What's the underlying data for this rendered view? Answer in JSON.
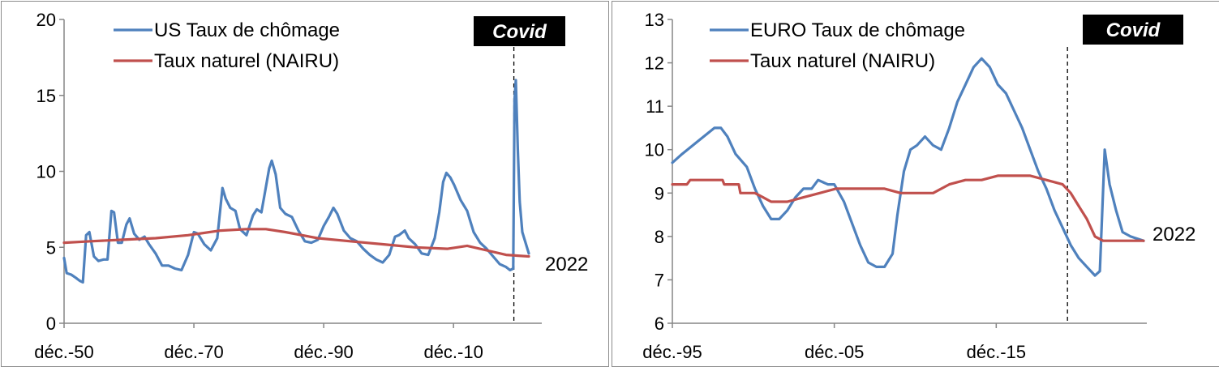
{
  "colors": {
    "unemployment": "#4f81bd",
    "nairu": "#c0504d",
    "axis": "#868686",
    "covid_bg": "#000000"
  },
  "chart_data": [
    {
      "type": "line",
      "title": "",
      "ylim": [
        0,
        20
      ],
      "yticks": [
        "0",
        "5",
        "10",
        "15",
        "20"
      ],
      "xlim": [
        1950.9,
        2024.5
      ],
      "xticks": [
        {
          "x": 1950.9,
          "label": "déc.-50"
        },
        {
          "x": 1970.9,
          "label": "déc.-70"
        },
        {
          "x": 1990.9,
          "label": "déc.-90"
        },
        {
          "x": 2010.9,
          "label": "déc.-10"
        }
      ],
      "grid": false,
      "legend": "top-left",
      "covid_label": "Covid",
      "covid_x": 2020.2,
      "end_label": "2022",
      "series": [
        {
          "name": "US Taux de chômage",
          "color": "#4f81bd",
          "points": [
            [
              1950.9,
              4.3
            ],
            [
              1951.3,
              3.3
            ],
            [
              1952,
              3.2
            ],
            [
              1952.7,
              3.0
            ],
            [
              1953.3,
              2.8
            ],
            [
              1953.8,
              2.7
            ],
            [
              1954.3,
              5.8
            ],
            [
              1954.8,
              6.0
            ],
            [
              1955.5,
              4.4
            ],
            [
              1956.2,
              4.1
            ],
            [
              1957,
              4.2
            ],
            [
              1957.6,
              4.2
            ],
            [
              1958.2,
              7.4
            ],
            [
              1958.6,
              7.3
            ],
            [
              1959.2,
              5.3
            ],
            [
              1959.8,
              5.3
            ],
            [
              1960.5,
              6.5
            ],
            [
              1961,
              6.9
            ],
            [
              1961.7,
              5.9
            ],
            [
              1962.5,
              5.5
            ],
            [
              1963.3,
              5.7
            ],
            [
              1964,
              5.2
            ],
            [
              1965,
              4.6
            ],
            [
              1966,
              3.8
            ],
            [
              1967,
              3.8
            ],
            [
              1968,
              3.6
            ],
            [
              1969,
              3.5
            ],
            [
              1970,
              4.5
            ],
            [
              1970.9,
              6.0
            ],
            [
              1971.5,
              5.9
            ],
            [
              1972.5,
              5.2
            ],
            [
              1973.5,
              4.8
            ],
            [
              1974.5,
              5.6
            ],
            [
              1975.3,
              8.9
            ],
            [
              1975.8,
              8.2
            ],
            [
              1976.5,
              7.6
            ],
            [
              1977.3,
              7.4
            ],
            [
              1978,
              6.2
            ],
            [
              1979,
              5.8
            ],
            [
              1980,
              7.1
            ],
            [
              1980.6,
              7.5
            ],
            [
              1981.3,
              7.3
            ],
            [
              1981.8,
              8.5
            ],
            [
              1982.5,
              10.2
            ],
            [
              1982.9,
              10.7
            ],
            [
              1983.5,
              9.8
            ],
            [
              1984.2,
              7.6
            ],
            [
              1985,
              7.2
            ],
            [
              1986,
              7.0
            ],
            [
              1987,
              6.1
            ],
            [
              1988,
              5.4
            ],
            [
              1989,
              5.3
            ],
            [
              1990,
              5.5
            ],
            [
              1990.9,
              6.4
            ],
            [
              1991.7,
              7.0
            ],
            [
              1992.4,
              7.6
            ],
            [
              1993,
              7.2
            ],
            [
              1994,
              6.1
            ],
            [
              1995,
              5.6
            ],
            [
              1996,
              5.4
            ],
            [
              1997,
              4.9
            ],
            [
              1998,
              4.5
            ],
            [
              1999,
              4.2
            ],
            [
              2000,
              4.0
            ],
            [
              2001,
              4.5
            ],
            [
              2001.9,
              5.7
            ],
            [
              2002.5,
              5.8
            ],
            [
              2003.4,
              6.1
            ],
            [
              2004,
              5.6
            ],
            [
              2005,
              5.2
            ],
            [
              2006,
              4.6
            ],
            [
              2007,
              4.5
            ],
            [
              2008,
              5.6
            ],
            [
              2008.7,
              7.3
            ],
            [
              2009.3,
              9.3
            ],
            [
              2009.8,
              9.9
            ],
            [
              2010.4,
              9.6
            ],
            [
              2011,
              9.1
            ],
            [
              2012,
              8.1
            ],
            [
              2013,
              7.4
            ],
            [
              2014,
              6.0
            ],
            [
              2015,
              5.3
            ],
            [
              2016,
              4.9
            ],
            [
              2017,
              4.4
            ],
            [
              2018,
              3.9
            ],
            [
              2019,
              3.7
            ],
            [
              2019.6,
              3.5
            ],
            [
              2020.1,
              3.6
            ],
            [
              2020.3,
              14.7
            ],
            [
              2020.5,
              16.0
            ],
            [
              2020.8,
              11.5
            ],
            [
              2021.1,
              8.0
            ],
            [
              2021.5,
              6.0
            ],
            [
              2022,
              5.3
            ],
            [
              2022.5,
              4.6
            ]
          ]
        },
        {
          "name": "Taux naturel (NAIRU)",
          "color": "#c0504d",
          "points": [
            [
              1950.9,
              5.3
            ],
            [
              1955,
              5.4
            ],
            [
              1960,
              5.5
            ],
            [
              1965,
              5.6
            ],
            [
              1970,
              5.8
            ],
            [
              1975,
              6.1
            ],
            [
              1979,
              6.2
            ],
            [
              1982,
              6.2
            ],
            [
              1985,
              6.0
            ],
            [
              1990,
              5.6
            ],
            [
              1995,
              5.4
            ],
            [
              2000,
              5.2
            ],
            [
              2005,
              5.0
            ],
            [
              2010,
              4.9
            ],
            [
              2013,
              5.1
            ],
            [
              2016,
              4.8
            ],
            [
              2019,
              4.5
            ],
            [
              2022.5,
              4.4
            ]
          ]
        }
      ]
    },
    {
      "type": "line",
      "title": "",
      "ylim": [
        6,
        13
      ],
      "yticks": [
        "6",
        "7",
        "8",
        "9",
        "10",
        "11",
        "12",
        "13"
      ],
      "xlim": [
        1995.9,
        2025.2
      ],
      "xticks": [
        {
          "x": 1995.9,
          "label": "déc.-95"
        },
        {
          "x": 2005.9,
          "label": "déc.-05"
        },
        {
          "x": 2015.9,
          "label": "déc.-15"
        }
      ],
      "grid": false,
      "legend": "top-left",
      "covid_label": "Covid",
      "covid_x": 2020.3,
      "end_label": "2022",
      "series": [
        {
          "name": "EURO Taux de chômage",
          "color": "#4f81bd",
          "points": [
            [
              1995.9,
              9.7
            ],
            [
              1996.5,
              9.9
            ],
            [
              1997.5,
              10.2
            ],
            [
              1998.5,
              10.5
            ],
            [
              1998.9,
              10.5
            ],
            [
              1999.3,
              10.3
            ],
            [
              1999.8,
              9.9
            ],
            [
              2000.5,
              9.6
            ],
            [
              2001,
              9.1
            ],
            [
              2001.5,
              8.7
            ],
            [
              2002,
              8.4
            ],
            [
              2002.5,
              8.4
            ],
            [
              2003,
              8.6
            ],
            [
              2003.5,
              8.9
            ],
            [
              2004,
              9.1
            ],
            [
              2004.5,
              9.1
            ],
            [
              2004.9,
              9.3
            ],
            [
              2005.5,
              9.2
            ],
            [
              2005.9,
              9.2
            ],
            [
              2006.5,
              8.8
            ],
            [
              2007,
              8.3
            ],
            [
              2007.5,
              7.8
            ],
            [
              2008,
              7.4
            ],
            [
              2008.5,
              7.3
            ],
            [
              2009,
              7.3
            ],
            [
              2009.5,
              7.6
            ],
            [
              2009.8,
              8.5
            ],
            [
              2010.2,
              9.5
            ],
            [
              2010.6,
              10.0
            ],
            [
              2011,
              10.1
            ],
            [
              2011.5,
              10.3
            ],
            [
              2012,
              10.1
            ],
            [
              2012.5,
              10.0
            ],
            [
              2013,
              10.5
            ],
            [
              2013.5,
              11.1
            ],
            [
              2014,
              11.5
            ],
            [
              2014.5,
              11.9
            ],
            [
              2015,
              12.1
            ],
            [
              2015.5,
              11.9
            ],
            [
              2016,
              11.5
            ],
            [
              2016.5,
              11.3
            ],
            [
              2017,
              10.9
            ],
            [
              2017.5,
              10.5
            ],
            [
              2018,
              10.0
            ],
            [
              2018.5,
              9.5
            ],
            [
              2019,
              9.1
            ],
            [
              2019.5,
              8.6
            ],
            [
              2020,
              8.2
            ],
            [
              2020.5,
              7.8
            ],
            [
              2021,
              7.5
            ],
            [
              2021.5,
              7.3
            ],
            [
              2022,
              7.1
            ],
            [
              2022.3,
              7.2
            ],
            [
              2022.6,
              10.0
            ],
            [
              2022.9,
              9.2
            ],
            [
              2023.3,
              8.6
            ],
            [
              2023.7,
              8.1
            ],
            [
              2024.2,
              8.0
            ],
            [
              2025,
              7.9
            ]
          ]
        },
        {
          "name": "Taux naturel (NAIRU)",
          "color": "#c0504d",
          "points": [
            [
              1995.9,
              9.2
            ],
            [
              1996.8,
              9.2
            ],
            [
              1997,
              9.3
            ],
            [
              1998.5,
              9.3
            ],
            [
              1999,
              9.3
            ],
            [
              1999.1,
              9.2
            ],
            [
              2000,
              9.2
            ],
            [
              2000.1,
              9.0
            ],
            [
              2001,
              9.0
            ],
            [
              2001.5,
              8.9
            ],
            [
              2002,
              8.8
            ],
            [
              2003,
              8.8
            ],
            [
              2004,
              8.9
            ],
            [
              2005,
              9.0
            ],
            [
              2006,
              9.1
            ],
            [
              2007,
              9.1
            ],
            [
              2008,
              9.1
            ],
            [
              2009,
              9.1
            ],
            [
              2010,
              9.0
            ],
            [
              2011,
              9.0
            ],
            [
              2012,
              9.0
            ],
            [
              2013,
              9.2
            ],
            [
              2014,
              9.3
            ],
            [
              2015,
              9.3
            ],
            [
              2016,
              9.4
            ],
            [
              2017,
              9.4
            ],
            [
              2018,
              9.4
            ],
            [
              2019,
              9.3
            ],
            [
              2020,
              9.2
            ],
            [
              2020.5,
              9.0
            ],
            [
              2021,
              8.7
            ],
            [
              2021.5,
              8.4
            ],
            [
              2022,
              8.0
            ],
            [
              2022.5,
              7.9
            ],
            [
              2025,
              7.9
            ]
          ]
        }
      ]
    }
  ]
}
